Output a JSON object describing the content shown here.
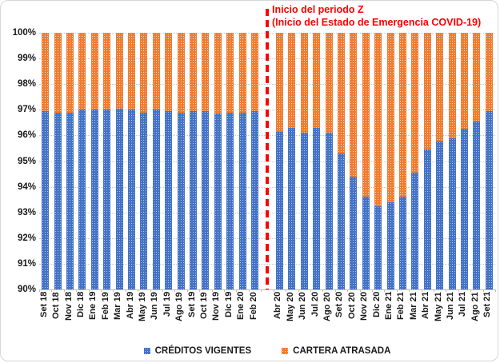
{
  "annotation": {
    "line1": "Inicio del periodo Z",
    "line2": "(Inicio del Estado de Emergencia COVID-19)"
  },
  "divider": {
    "after_category": "Feb 20",
    "color": "#FF0000",
    "style": "dashed-vertical"
  },
  "colors": {
    "vigentes": "#4472C4",
    "vigentes_dot": "#A9C4EE",
    "atrasada": "#ED7D31",
    "atrasada_dot": "#FBD2B5",
    "annotation_red": "#FF0000",
    "gridline": "#C8C8C8"
  },
  "chart_data": {
    "type": "bar",
    "stacked": true,
    "title": "",
    "xlabel": "",
    "ylabel": "",
    "ylim": [
      90,
      100
    ],
    "grid": "horizontal-dotted",
    "legend_position": "bottom-center",
    "yticks": [
      "100%",
      "99%",
      "98%",
      "97%",
      "96%",
      "95%",
      "94%",
      "93%",
      "92%",
      "91%",
      "90%"
    ],
    "categories": [
      "Set 18",
      "Oct 18",
      "Nov 18",
      "Dic 18",
      "Ene 19",
      "Feb 19",
      "Mar 19",
      "Abr 19",
      "May 19",
      "Jun 19",
      "Jul 19",
      "Ago 19",
      "Set 19",
      "Oct 19",
      "Nov 19",
      "Dic 19",
      "Ene 20",
      "Feb 20",
      "Abr 20",
      "May 20",
      "Jun 20",
      "Jul 20",
      "Ago 20",
      "Set 20",
      "Oct 20",
      "Nov 20",
      "Dic 20",
      "Ene 21",
      "Feb 21",
      "Mar 21",
      "Abr 21",
      "May 21",
      "Jun 21",
      "Jul 21",
      "Ago 21",
      "Set 21"
    ],
    "series": [
      {
        "name": "CRÉDITOS VIGENTES",
        "color": "#4472C4",
        "values": [
          96.95,
          96.9,
          96.9,
          97.0,
          97.0,
          97.0,
          97.05,
          97.0,
          96.9,
          97.0,
          96.95,
          96.9,
          96.95,
          96.95,
          96.85,
          96.9,
          96.9,
          96.95,
          96.15,
          96.3,
          96.1,
          96.3,
          96.1,
          95.3,
          94.4,
          93.6,
          93.25,
          93.4,
          93.6,
          94.55,
          95.45,
          95.75,
          95.9,
          96.25,
          96.55,
          96.95
        ]
      },
      {
        "name": "CARTERA ATRASADA",
        "color": "#ED7D31",
        "values": [
          3.05,
          3.1,
          3.1,
          3.0,
          3.0,
          3.0,
          2.95,
          3.0,
          3.1,
          3.0,
          3.05,
          3.1,
          3.05,
          3.05,
          3.15,
          3.1,
          3.1,
          3.05,
          3.85,
          3.7,
          3.9,
          3.7,
          3.9,
          4.7,
          5.6,
          6.4,
          6.75,
          6.6,
          6.4,
          5.45,
          4.55,
          4.25,
          4.1,
          3.75,
          3.45,
          3.05
        ]
      }
    ]
  }
}
